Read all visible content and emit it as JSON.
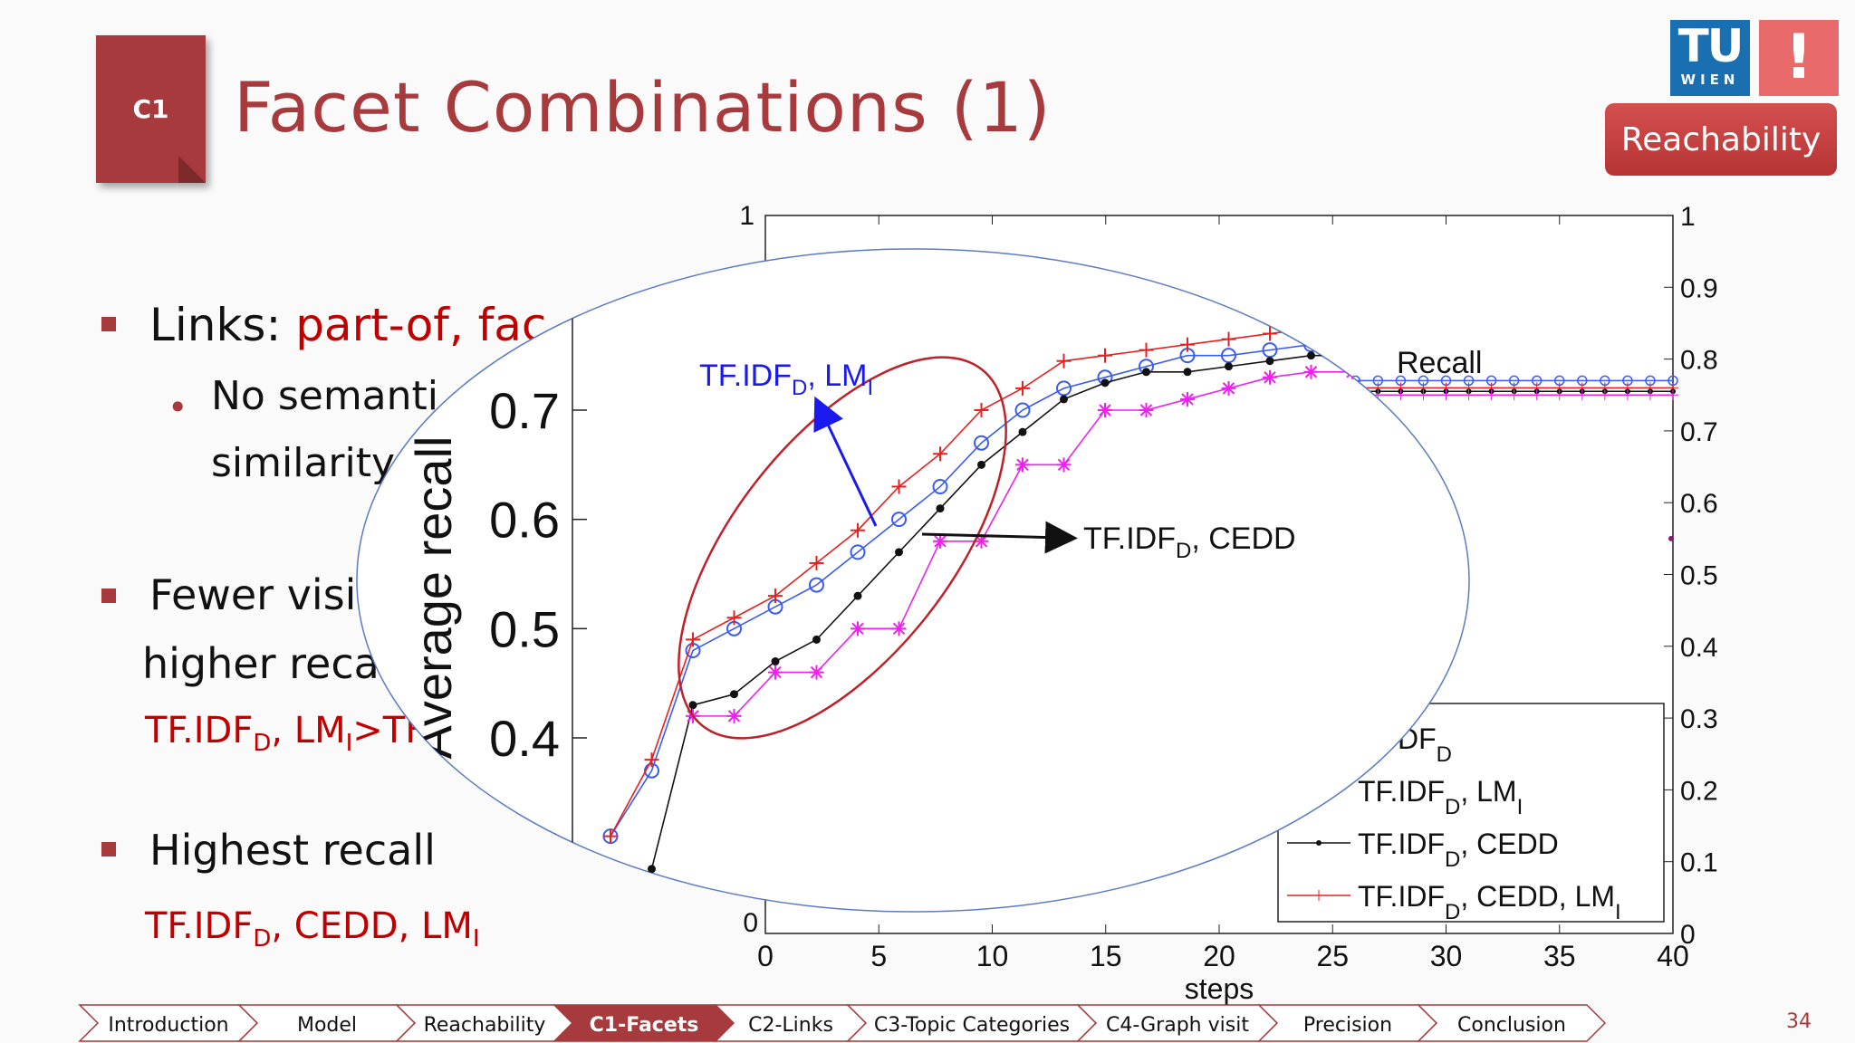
{
  "section_tag": "C1",
  "title": "Facet Combinations  (1)",
  "logos": {
    "tu": "TU",
    "wien": "WIEN",
    "excl": "!"
  },
  "section_badge": "Reachability",
  "bullets": {
    "links_label": "Links: ",
    "links_value": "part-of, fac",
    "links_sub1": "No semanti",
    "links_sub2": "similarity",
    "fewer_line1": "Fewer visi",
    "fewer_line2": "higher reca",
    "fewer_red_a": "TF.IDF",
    "fewer_red_sub": "D",
    "fewer_red_b": ", LM",
    "fewer_red_sub2": "I",
    "fewer_red_c": ">TF",
    "highest": "Highest recall",
    "highest_red_a": "TF.IDF",
    "highest_red_sub": "D",
    "highest_red_b": ", CEDD, LM",
    "highest_red_sub2": "I"
  },
  "chart_data": {
    "type": "line",
    "xlabel": "steps",
    "ylabel": "Average recall",
    "xlim": [
      0,
      40
    ],
    "ylim": [
      0,
      1
    ],
    "x_ticks": [
      "0",
      "5",
      "10",
      "15",
      "20",
      "25",
      "30",
      "35",
      "40"
    ],
    "y_ticks_right": [
      "0",
      "0.1",
      "0.2",
      "0.3",
      "0.4",
      "0.5",
      "0.6",
      "0.7",
      "0.8",
      "0.9",
      "1"
    ],
    "y_tick_left_top": "1",
    "y_tick_left_bottom": "0",
    "zoom_y_ticks": [
      "0.4",
      "0.5",
      "0.6",
      "0.7"
    ],
    "legend_entries": [
      "TF.IDF_D",
      "TF.IDF_D, LM_I",
      "TF.IDF_D, CEDD",
      "TF.IDF_D, CEDD, LM_I"
    ],
    "legend_visible": [
      {
        "a": "DF",
        "b": "D"
      },
      {
        "a": "TF.IDF",
        "b": "D",
        "c": ", LM",
        "d": "I"
      },
      {
        "a": "TF.IDF",
        "b": "D",
        "c": ", CEDD",
        "d": ""
      },
      {
        "a": "TF.IDF",
        "b": "D",
        "c": ", CEDD, LM",
        "d": "I"
      }
    ],
    "annotations": {
      "recall": "Recall",
      "lm_label_a": "TF.IDF",
      "lm_label_sub": "D",
      "lm_label_b": ", LM",
      "lm_label_sub2": "I",
      "cedd_label_a": "TF.IDF",
      "cedd_label_sub": "D",
      "cedd_label_b": ", CEDD"
    },
    "zoom_x": [
      1,
      2,
      3,
      4,
      5,
      6,
      7,
      8,
      9,
      10,
      11,
      12,
      13,
      14,
      15,
      16,
      17,
      18,
      19,
      20,
      21
    ],
    "series": [
      {
        "name": "TF.IDF_D, LM_I",
        "color": "#3a5cf0",
        "marker": "circle",
        "values": [
          0.31,
          0.37,
          0.48,
          0.5,
          0.52,
          0.54,
          0.57,
          0.6,
          0.63,
          0.67,
          0.7,
          0.72,
          0.73,
          0.74,
          0.75,
          0.75,
          0.755,
          0.76,
          0.76,
          0.77,
          null
        ]
      },
      {
        "name": "TF.IDF_D, CEDD",
        "color": "#111111",
        "marker": "dot",
        "values": [
          null,
          0.28,
          0.43,
          0.44,
          0.47,
          0.49,
          0.53,
          0.57,
          0.61,
          0.65,
          0.68,
          0.71,
          0.725,
          0.735,
          0.735,
          0.74,
          0.745,
          0.75,
          0.75,
          0.75,
          null
        ]
      },
      {
        "name": "TF.IDF_D, CEDD, LM_I",
        "color": "#e82020",
        "marker": "plus",
        "values": [
          0.31,
          0.38,
          0.49,
          0.51,
          0.53,
          0.56,
          0.59,
          0.63,
          0.66,
          0.7,
          0.72,
          0.745,
          0.75,
          0.755,
          0.76,
          0.765,
          0.77,
          0.775,
          0.78,
          null,
          null
        ]
      },
      {
        "name": "TF.IDF_D (pink)",
        "color": "#ee22ee",
        "marker": "star",
        "values": [
          null,
          null,
          0.42,
          0.42,
          0.46,
          0.46,
          0.5,
          0.5,
          0.58,
          0.58,
          0.65,
          0.65,
          0.7,
          0.7,
          0.71,
          0.72,
          0.73,
          0.735,
          0.735,
          0.74,
          null
        ]
      }
    ],
    "tail_series": [
      {
        "color": "#3a5cf0",
        "value": 0.77
      },
      {
        "color": "#e82020",
        "value": 0.76
      },
      {
        "color": "#111111",
        "value": 0.755
      },
      {
        "color": "#ee22ee",
        "value": 0.75
      }
    ]
  },
  "nav": {
    "items": [
      "Introduction",
      "Model",
      "Reachability",
      "C1-Facets",
      "C2-Links",
      "C3-Topic Categories",
      "C4-Graph visit",
      "Precision",
      "Conclusion"
    ],
    "active_index": 3,
    "active_color": "#a63a3c"
  },
  "page_number": "34"
}
